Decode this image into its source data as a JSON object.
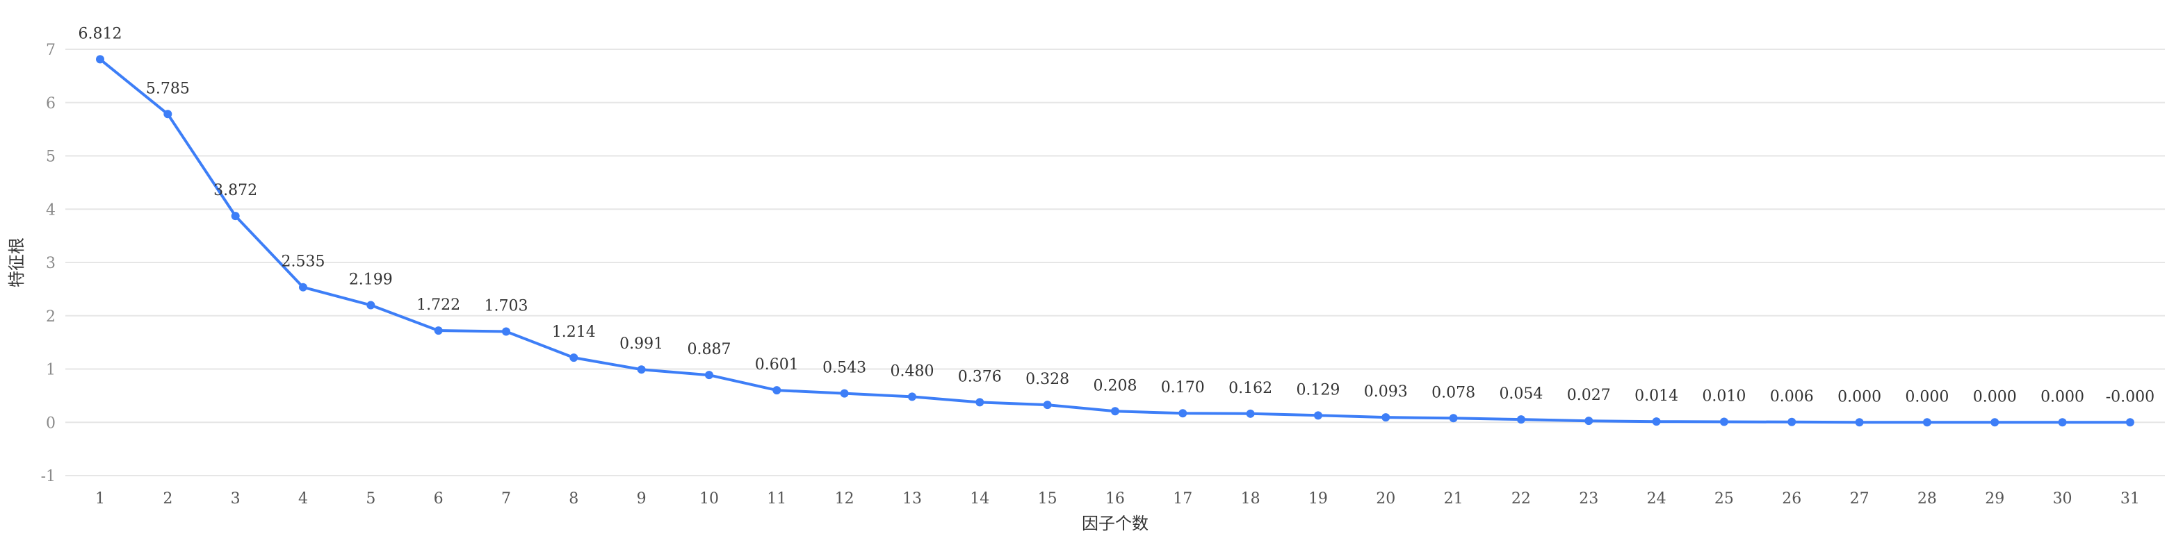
{
  "chart_data": {
    "type": "line",
    "title": "",
    "xlabel": "因子个数",
    "ylabel": "特征根",
    "ylim": [
      -1,
      7
    ],
    "yticks": [
      -1,
      0,
      1,
      2,
      3,
      4,
      5,
      6,
      7
    ],
    "grid": true,
    "x": [
      "1",
      "2",
      "3",
      "4",
      "5",
      "6",
      "7",
      "8",
      "9",
      "10",
      "11",
      "12",
      "13",
      "14",
      "15",
      "16",
      "17",
      "18",
      "19",
      "20",
      "21",
      "22",
      "23",
      "24",
      "25",
      "26",
      "27",
      "28",
      "29",
      "30",
      "31"
    ],
    "series": [
      {
        "color": "#3d7ef7",
        "values": [
          6.812,
          5.785,
          3.872,
          2.535,
          2.199,
          1.722,
          1.703,
          1.214,
          0.991,
          0.887,
          0.601,
          0.543,
          0.48,
          0.376,
          0.328,
          0.208,
          0.17,
          0.162,
          0.129,
          0.093,
          0.078,
          0.054,
          0.027,
          0.014,
          0.01,
          0.006,
          0.0,
          0.0,
          0.0,
          0.0,
          -0.0
        ],
        "labels": [
          "6.812",
          "5.785",
          "3.872",
          "2.535",
          "2.199",
          "1.722",
          "1.703",
          "1.214",
          "0.991",
          "0.887",
          "0.601",
          "0.543",
          "0.480",
          "0.376",
          "0.328",
          "0.208",
          "0.170",
          "0.162",
          "0.129",
          "0.093",
          "0.078",
          "0.054",
          "0.027",
          "0.014",
          "0.010",
          "0.006",
          "0.000",
          "0.000",
          "0.000",
          "0.000",
          "-0.000"
        ]
      }
    ]
  }
}
